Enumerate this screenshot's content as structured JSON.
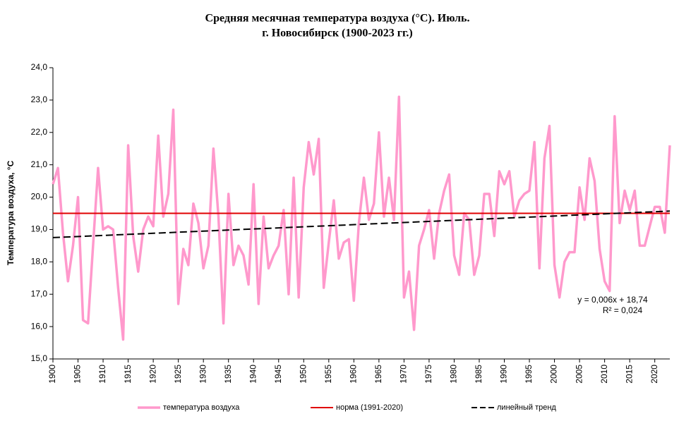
{
  "chart_data": {
    "type": "line",
    "title": "Средняя месячная температура воздуха (°С). Июль.",
    "subtitle": "г. Новосибирск (1900-2023 гг.)",
    "ylabel": "Температура  воздуха, °С",
    "xlim": [
      1900,
      2023
    ],
    "xticks": [
      1900,
      1905,
      1910,
      1915,
      1920,
      1925,
      1930,
      1935,
      1940,
      1945,
      1950,
      1955,
      1960,
      1965,
      1970,
      1975,
      1980,
      1985,
      1990,
      1995,
      2000,
      2005,
      2010,
      2015,
      2020
    ],
    "ylim": [
      15,
      24
    ],
    "yticks": [
      {
        "value": 15,
        "label": "15,0"
      },
      {
        "value": 16,
        "label": "16,0"
      },
      {
        "value": 17,
        "label": "17,0"
      },
      {
        "value": 18,
        "label": "18,0"
      },
      {
        "value": 19,
        "label": "19,0"
      },
      {
        "value": 20,
        "label": "20,0"
      },
      {
        "value": 21,
        "label": "21,0"
      },
      {
        "value": 22,
        "label": "22,0"
      },
      {
        "value": 23,
        "label": "23,0"
      },
      {
        "value": 24,
        "label": "24,0"
      }
    ],
    "grid": false,
    "legend": "bottom",
    "annotations": [
      "y = 0,006x + 18,74",
      "R² = 0,024"
    ],
    "series": [
      {
        "name": "температура воздуха",
        "color": "#ff99cc",
        "style": "solid",
        "x": [
          1900,
          1901,
          1902,
          1903,
          1904,
          1905,
          1906,
          1907,
          1908,
          1909,
          1910,
          1911,
          1912,
          1913,
          1914,
          1915,
          1916,
          1917,
          1918,
          1919,
          1920,
          1921,
          1922,
          1923,
          1924,
          1925,
          1926,
          1927,
          1928,
          1929,
          1930,
          1931,
          1932,
          1933,
          1934,
          1935,
          1936,
          1937,
          1938,
          1939,
          1940,
          1941,
          1942,
          1943,
          1944,
          1945,
          1946,
          1947,
          1948,
          1949,
          1950,
          1951,
          1952,
          1953,
          1954,
          1955,
          1956,
          1957,
          1958,
          1959,
          1960,
          1961,
          1962,
          1963,
          1964,
          1965,
          1966,
          1967,
          1968,
          1969,
          1970,
          1971,
          1972,
          1973,
          1974,
          1975,
          1976,
          1977,
          1978,
          1979,
          1980,
          1981,
          1982,
          1983,
          1984,
          1985,
          1986,
          1987,
          1988,
          1989,
          1990,
          1991,
          1992,
          1993,
          1994,
          1995,
          1996,
          1997,
          1998,
          1999,
          2000,
          2001,
          2002,
          2003,
          2004,
          2005,
          2006,
          2007,
          2008,
          2009,
          2010,
          2011,
          2012,
          2013,
          2014,
          2015,
          2016,
          2017,
          2018,
          2019,
          2020,
          2021,
          2022,
          2023
        ],
        "values": [
          20.4,
          20.9,
          18.9,
          17.4,
          18.5,
          20.0,
          16.2,
          16.1,
          18.5,
          20.9,
          19.0,
          19.1,
          19.0,
          17.2,
          15.6,
          21.6,
          18.8,
          17.7,
          19.0,
          19.4,
          19.1,
          21.9,
          19.4,
          20.1,
          22.7,
          16.7,
          18.4,
          17.9,
          19.8,
          19.2,
          17.8,
          18.5,
          21.5,
          19.4,
          16.1,
          20.1,
          17.9,
          18.5,
          18.2,
          17.3,
          20.4,
          16.7,
          19.4,
          17.8,
          18.2,
          18.5,
          19.6,
          17.0,
          20.6,
          16.9,
          20.3,
          21.7,
          20.7,
          21.8,
          17.2,
          18.6,
          19.9,
          18.1,
          18.6,
          18.7,
          16.8,
          19.2,
          20.6,
          19.3,
          19.8,
          22.0,
          19.4,
          20.6,
          19.3,
          23.1,
          16.9,
          17.7,
          15.9,
          18.5,
          19.0,
          19.6,
          18.1,
          19.5,
          20.2,
          20.7,
          18.2,
          17.6,
          19.5,
          19.3,
          17.6,
          18.2,
          20.1,
          20.1,
          18.8,
          20.8,
          20.4,
          20.8,
          19.4,
          19.9,
          20.1,
          20.2,
          21.7,
          17.8,
          21.2,
          22.2,
          17.9,
          16.9,
          18.0,
          18.3,
          18.3,
          20.3,
          19.3,
          21.2,
          20.5,
          18.4,
          17.4,
          17.1,
          22.5,
          19.2,
          20.2,
          19.6,
          20.2,
          18.5,
          18.5,
          19.1,
          19.7,
          19.7,
          18.9,
          21.6
        ]
      },
      {
        "name": "норма (1991-2020)",
        "color": "#e00000",
        "style": "solid",
        "x": [
          1900,
          2023
        ],
        "values": [
          19.5,
          19.5
        ]
      },
      {
        "name": "линейный тренд",
        "color": "#000000",
        "style": "dashed",
        "x": [
          1900,
          2023
        ],
        "values": [
          18.75,
          19.57
        ]
      }
    ]
  }
}
